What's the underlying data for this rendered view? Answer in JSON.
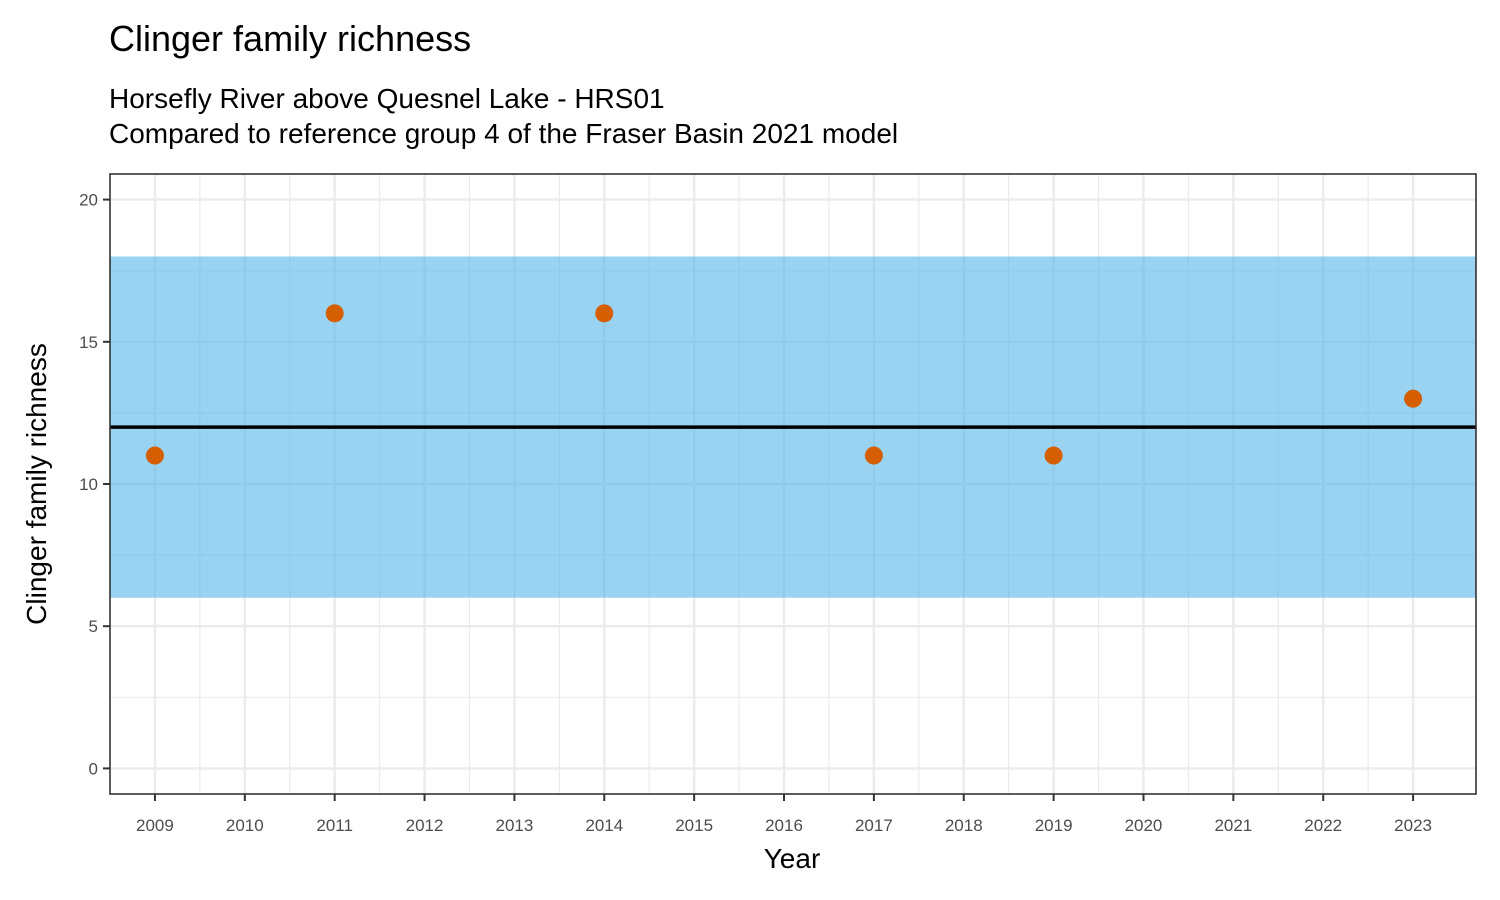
{
  "chart_data": {
    "type": "scatter",
    "title": "Clinger family richness",
    "subtitle_lines": [
      "Horsefly River above Quesnel Lake - HRS01",
      "Compared to reference group 4 of the Fraser Basin 2021 model"
    ],
    "xlabel": "Year",
    "ylabel": "Clinger family richness",
    "xlim": [
      2008.5,
      2023.7
    ],
    "ylim": [
      -0.9,
      20.9
    ],
    "x_ticks": [
      2009,
      2010,
      2011,
      2012,
      2013,
      2014,
      2015,
      2016,
      2017,
      2018,
      2019,
      2020,
      2021,
      2022,
      2023
    ],
    "y_ticks": [
      0,
      5,
      10,
      15,
      20
    ],
    "reference_band": {
      "lower": 6,
      "upper": 18,
      "color": "#56b4e9"
    },
    "reference_line": {
      "value": 12,
      "color": "#000000"
    },
    "series": [
      {
        "name": "Clinger family richness",
        "color": "#d55e00",
        "x": [
          2009,
          2011,
          2014,
          2017,
          2019,
          2023
        ],
        "y": [
          11,
          16,
          16,
          11,
          11,
          13
        ]
      }
    ],
    "grid": true
  }
}
